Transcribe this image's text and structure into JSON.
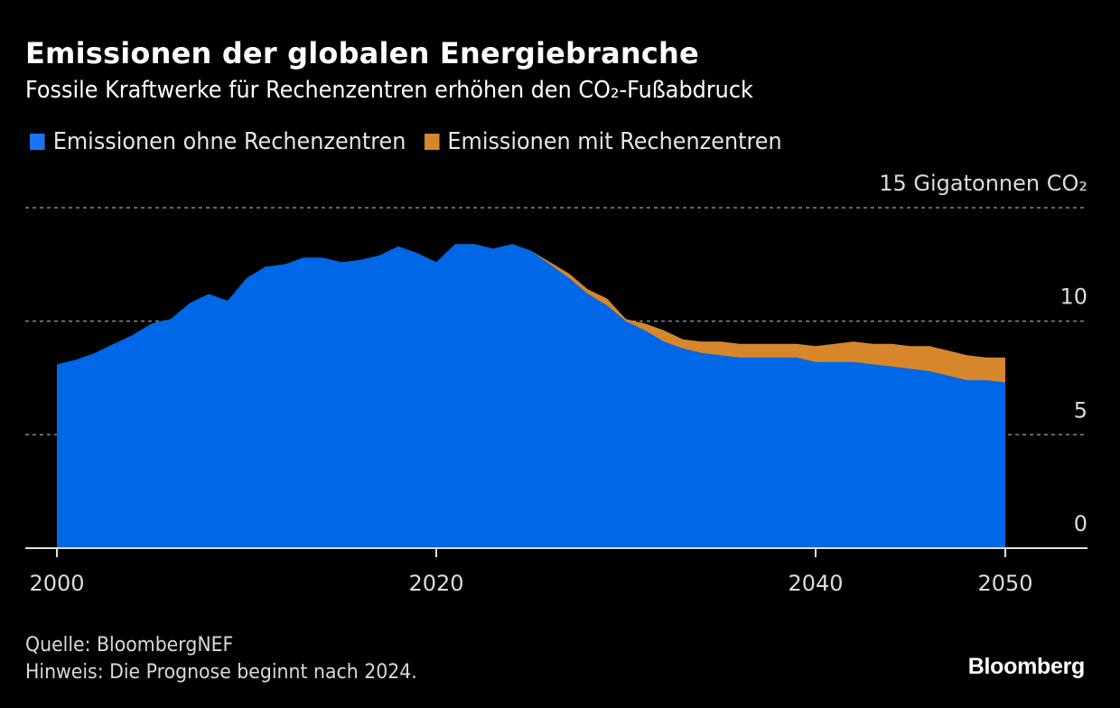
{
  "header": {
    "title": "Emissionen der globalen Energiebranche",
    "subtitle": "Fossile Kraftwerke für Rechenzentren erhöhen den CO₂-Fußabdruck"
  },
  "legend": [
    {
      "label": "Emissionen ohne Rechenzentren",
      "color": "#1a74f5"
    },
    {
      "label": "Emissionen mit Rechenzentren",
      "color": "#d6862b"
    }
  ],
  "footer": {
    "source": "Quelle: BloombergNEF",
    "note": "Hinweis: Die Prognose beginnt nach 2024.",
    "logo": "Bloomberg"
  },
  "chart_data": {
    "type": "area",
    "title": "Emissionen der globalen Energiebranche",
    "subtitle": "Fossile Kraftwerke für Rechenzentren erhöhen den CO₂-Fußabdruck",
    "xlabel": "",
    "ylabel": "Gigatonnen CO₂",
    "unit_label": "15 Gigatonnen CO₂",
    "xlim": [
      1998.3,
      2054.5
    ],
    "ylim": [
      0,
      15
    ],
    "x_ticks": [
      2000,
      2020,
      2040,
      2050
    ],
    "x_tick_labels": [
      "2000",
      "2020",
      "2040",
      "2050"
    ],
    "y_ticks": [
      0,
      5,
      10,
      15
    ],
    "y_tick_labels": [
      "0",
      "5",
      "10",
      "15 Gigatonnen CO₂"
    ],
    "grid": true,
    "legend_position": "top-left",
    "forecast_start": 2024,
    "series": [
      {
        "name": "Emissionen ohne Rechenzentren",
        "color": "#0068e6",
        "x": [
          2000,
          2001,
          2002,
          2003,
          2004,
          2005,
          2006,
          2007,
          2008,
          2009,
          2010,
          2011,
          2012,
          2013,
          2014,
          2015,
          2016,
          2017,
          2018,
          2019,
          2020,
          2021,
          2022,
          2023,
          2024,
          2025,
          2026,
          2027,
          2028,
          2029,
          2030,
          2031,
          2032,
          2033,
          2034,
          2035,
          2036,
          2037,
          2038,
          2039,
          2040,
          2041,
          2042,
          2043,
          2044,
          2045,
          2046,
          2047,
          2048,
          2049,
          2050
        ],
        "values": [
          8.1,
          8.3,
          8.6,
          9.0,
          9.4,
          9.9,
          10.1,
          10.8,
          11.2,
          10.9,
          11.9,
          12.4,
          12.5,
          12.8,
          12.8,
          12.6,
          12.7,
          12.9,
          13.3,
          13.0,
          12.6,
          13.4,
          13.4,
          13.2,
          13.4,
          13.1,
          12.5,
          11.9,
          11.2,
          10.7,
          10.0,
          9.6,
          9.1,
          8.8,
          8.6,
          8.5,
          8.4,
          8.4,
          8.4,
          8.4,
          8.2,
          8.2,
          8.2,
          8.1,
          8.0,
          7.9,
          7.8,
          7.6,
          7.4,
          7.4,
          7.3
        ]
      },
      {
        "name": "Emissionen mit Rechenzentren",
        "color": "#d6862b",
        "x": [
          2024,
          2025,
          2026,
          2027,
          2028,
          2029,
          2030,
          2031,
          2032,
          2033,
          2034,
          2035,
          2036,
          2037,
          2038,
          2039,
          2040,
          2041,
          2042,
          2043,
          2044,
          2045,
          2046,
          2047,
          2048,
          2049,
          2050
        ],
        "values": [
          13.4,
          13.1,
          12.6,
          12.1,
          11.4,
          11.0,
          10.1,
          9.9,
          9.6,
          9.2,
          9.1,
          9.1,
          9.0,
          9.0,
          9.0,
          9.0,
          8.9,
          9.0,
          9.1,
          9.0,
          9.0,
          8.9,
          8.9,
          8.7,
          8.5,
          8.4,
          8.4
        ]
      }
    ]
  }
}
